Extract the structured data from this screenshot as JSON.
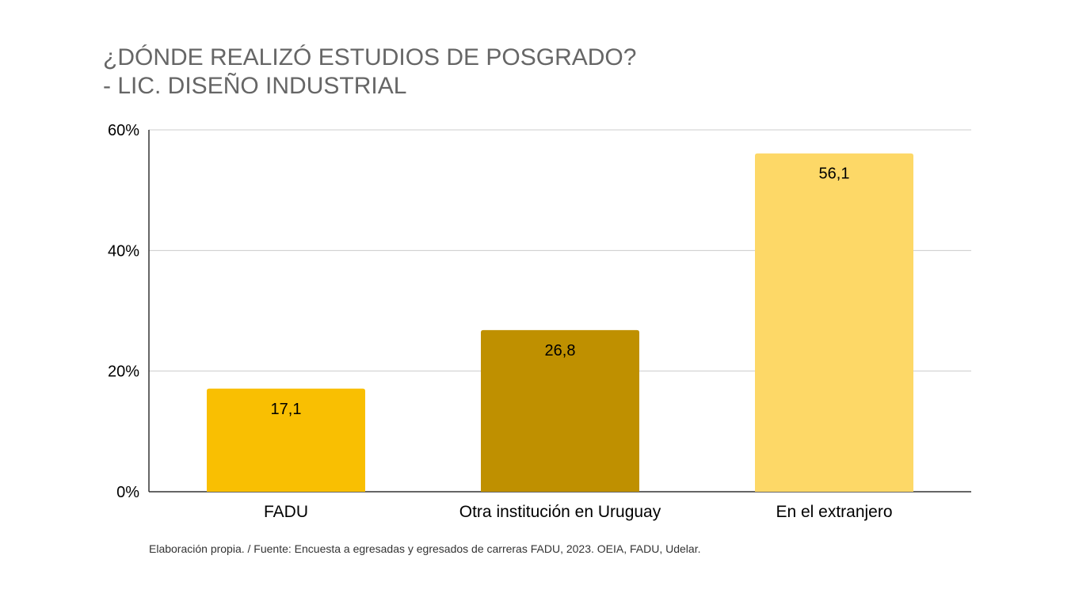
{
  "chart_data": {
    "type": "bar",
    "title_line1": "¿DÓNDE REALIZÓ ESTUDIOS DE POSGRADO?",
    "title_line2": "- LIC. DISEÑO INDUSTRIAL",
    "categories": [
      "FADU",
      "Otra institución en Uruguay",
      "En el extranjero"
    ],
    "values": [
      17.1,
      26.8,
      56.1
    ],
    "data_labels": [
      "17,1",
      "26,8",
      "56,1"
    ],
    "bar_colors": [
      "#f9bf02",
      "#bf9000",
      "#fdd867"
    ],
    "ylim": [
      0,
      60
    ],
    "yticks": [
      0,
      20,
      40,
      60
    ],
    "ytick_labels": [
      "0%",
      "20%",
      "40%",
      "60%"
    ],
    "grid": true,
    "xlabel": "",
    "ylabel": ""
  },
  "source_note": "Elaboración propia. / Fuente: Encuesta a egresadas y egresados de carreras FADU, 2023. OEIA, FADU, Udelar."
}
